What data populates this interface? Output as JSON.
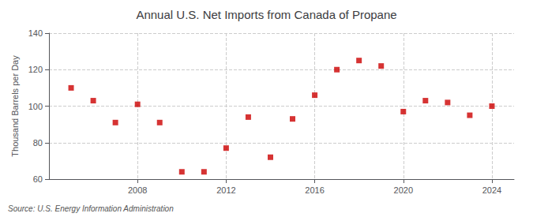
{
  "chart_data": {
    "type": "scatter",
    "title": "Annual U.S. Net Imports from Canada of Propane",
    "ylabel": "Thousand Barrels per Day",
    "annotations": [
      "Source: U.S. Energy Information Administration"
    ],
    "x": [
      2005,
      2006,
      2007,
      2008,
      2009,
      2010,
      2011,
      2012,
      2013,
      2014,
      2015,
      2016,
      2017,
      2018,
      2019,
      2020,
      2021,
      2022,
      2023,
      2024
    ],
    "values": [
      110,
      103,
      91,
      101,
      91,
      64,
      64,
      77,
      94,
      72,
      93,
      106,
      120,
      125,
      122,
      97,
      103,
      102,
      95,
      100
    ],
    "color": "#cc0000",
    "marker": "square",
    "xlim": [
      2004,
      2025
    ],
    "xticks": [
      2008,
      2012,
      2016,
      2020,
      2024
    ],
    "ylim": [
      60,
      140
    ],
    "yticks": [
      60,
      80,
      100,
      120,
      140
    ],
    "grid": true
  }
}
